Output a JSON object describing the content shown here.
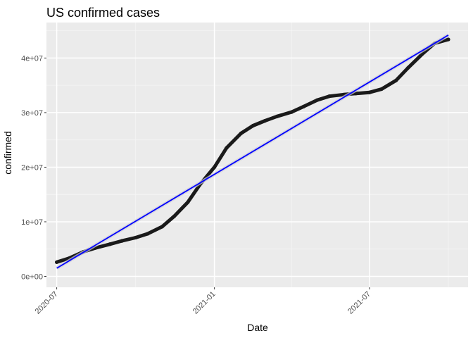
{
  "chart_data": {
    "type": "scatter",
    "title": "US confirmed cases",
    "xlabel": "Date",
    "ylabel": "confirmed",
    "x_type": "date",
    "xlim": [
      "2020-06-19",
      "2021-10-24"
    ],
    "ylim": [
      -2000000,
      46500000
    ],
    "x_ticks": [
      {
        "value": "2020-07-01",
        "label": "2020-07"
      },
      {
        "value": "2021-01-01",
        "label": "2021-01"
      },
      {
        "value": "2021-07-01",
        "label": "2021-07"
      }
    ],
    "x_minor_ticks": [
      "2020-10-01",
      "2021-04-01",
      "2021-10-01"
    ],
    "y_ticks": [
      {
        "value": 0,
        "label": "0e+00"
      },
      {
        "value": 10000000,
        "label": "1e+07"
      },
      {
        "value": 20000000,
        "label": "2e+07"
      },
      {
        "value": 30000000,
        "label": "3e+07"
      },
      {
        "value": 40000000,
        "label": "4e+07"
      }
    ],
    "grid": true,
    "legend": "none",
    "series": [
      {
        "kind": "points",
        "color": "#1a1a1a",
        "points": [
          {
            "x": "2020-07-01",
            "y": 2600000
          },
          {
            "x": "2020-07-15",
            "y": 3300000
          },
          {
            "x": "2020-08-01",
            "y": 4500000
          },
          {
            "x": "2020-08-15",
            "y": 5200000
          },
          {
            "x": "2020-09-01",
            "y": 5900000
          },
          {
            "x": "2020-09-15",
            "y": 6500000
          },
          {
            "x": "2020-10-01",
            "y": 7100000
          },
          {
            "x": "2020-10-15",
            "y": 7800000
          },
          {
            "x": "2020-11-01",
            "y": 9100000
          },
          {
            "x": "2020-11-15",
            "y": 11000000
          },
          {
            "x": "2020-12-01",
            "y": 13600000
          },
          {
            "x": "2020-12-15",
            "y": 16800000
          },
          {
            "x": "2021-01-01",
            "y": 20000000
          },
          {
            "x": "2021-01-15",
            "y": 23500000
          },
          {
            "x": "2021-02-01",
            "y": 26200000
          },
          {
            "x": "2021-02-15",
            "y": 27600000
          },
          {
            "x": "2021-03-01",
            "y": 28500000
          },
          {
            "x": "2021-03-15",
            "y": 29300000
          },
          {
            "x": "2021-04-01",
            "y": 30100000
          },
          {
            "x": "2021-04-15",
            "y": 31100000
          },
          {
            "x": "2021-05-01",
            "y": 32300000
          },
          {
            "x": "2021-05-15",
            "y": 33000000
          },
          {
            "x": "2021-06-01",
            "y": 33300000
          },
          {
            "x": "2021-06-15",
            "y": 33500000
          },
          {
            "x": "2021-07-01",
            "y": 33700000
          },
          {
            "x": "2021-07-15",
            "y": 34300000
          },
          {
            "x": "2021-08-01",
            "y": 35900000
          },
          {
            "x": "2021-08-15",
            "y": 38200000
          },
          {
            "x": "2021-09-01",
            "y": 40800000
          },
          {
            "x": "2021-09-15",
            "y": 42700000
          },
          {
            "x": "2021-10-01",
            "y": 43400000
          }
        ]
      },
      {
        "kind": "trend-line",
        "color": "#0000ff",
        "points": [
          {
            "x": "2020-07-01",
            "y": 1500000
          },
          {
            "x": "2021-10-01",
            "y": 44200000
          }
        ]
      }
    ]
  }
}
